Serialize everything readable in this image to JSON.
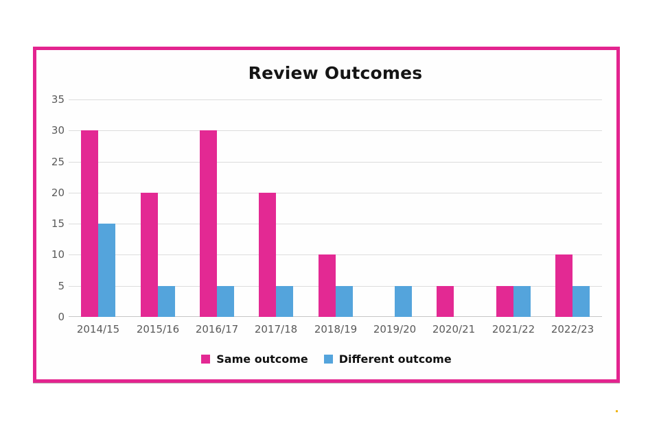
{
  "frame": {
    "border_color": "#E3248F"
  },
  "chart_data": {
    "type": "bar",
    "title": "Review Outcomes",
    "categories": [
      "2014/15",
      "2015/16",
      "2016/17",
      "2017/18",
      "2018/19",
      "2019/20",
      "2020/21",
      "2021/22",
      "2022/23"
    ],
    "series": [
      {
        "name": "Same outcome",
        "color": "#E32993",
        "values": [
          30,
          20,
          30,
          20,
          10,
          0,
          5,
          5,
          10
        ]
      },
      {
        "name": "Different outcome",
        "color": "#54A4DC",
        "values": [
          15,
          5,
          5,
          5,
          5,
          5,
          0,
          5,
          5
        ]
      }
    ],
    "xlabel": "",
    "ylabel": "",
    "ylim": [
      0,
      35
    ],
    "yticks": [
      0,
      5,
      10,
      15,
      20,
      25,
      30,
      35
    ],
    "grid": true,
    "gridline_color": "#DCDCDC",
    "axis_line_color": "#C6C6C6",
    "tick_label_color": "#595959",
    "legend_position": "bottom"
  }
}
